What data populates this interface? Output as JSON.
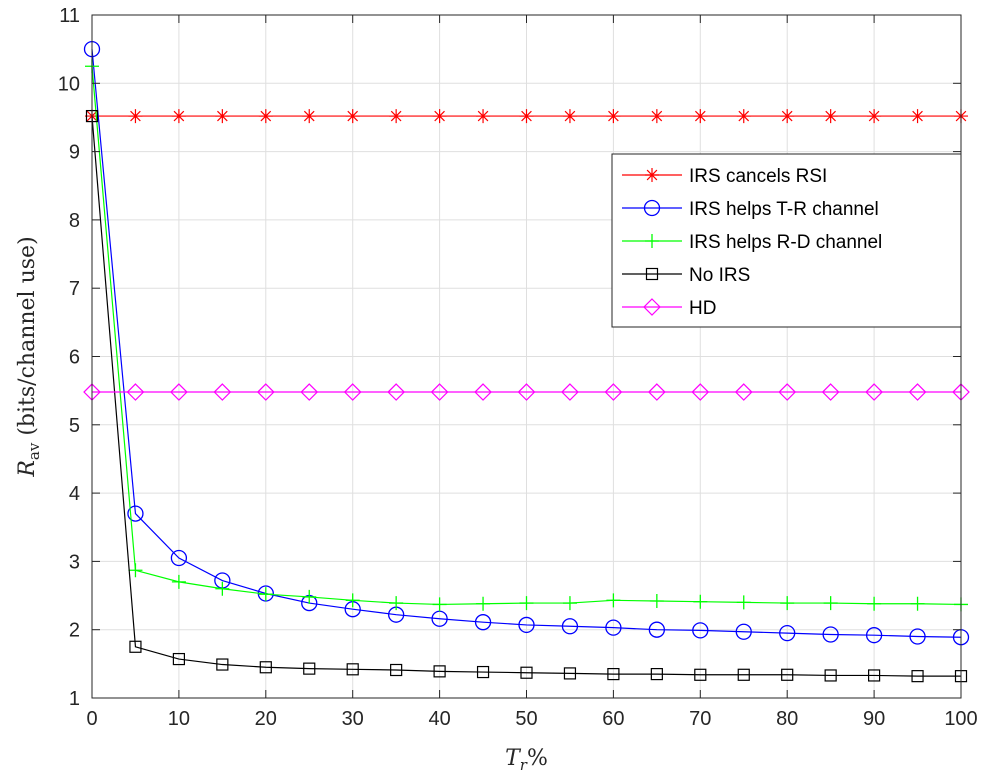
{
  "chart_data": {
    "type": "line",
    "xlabel": "T_r %",
    "ylabel": "R_av (bits/channel use)",
    "xlim": [
      0,
      100
    ],
    "ylim": [
      1,
      11
    ],
    "xticks": [
      "0",
      "10",
      "20",
      "30",
      "40",
      "50",
      "60",
      "70",
      "80",
      "90",
      "100"
    ],
    "yticks": [
      "1",
      "2",
      "3",
      "4",
      "5",
      "6",
      "7",
      "8",
      "9",
      "10",
      "11"
    ],
    "grid": true,
    "legend_position": "top-right",
    "x": [
      0,
      5,
      10,
      15,
      20,
      25,
      30,
      35,
      40,
      45,
      50,
      55,
      60,
      65,
      70,
      75,
      80,
      85,
      90,
      95,
      100
    ],
    "series": [
      {
        "name": "IRS cancels RSI",
        "color": "#ff0000",
        "marker": "asterisk",
        "values": [
          9.52,
          9.52,
          9.52,
          9.52,
          9.52,
          9.52,
          9.52,
          9.52,
          9.52,
          9.52,
          9.52,
          9.52,
          9.52,
          9.52,
          9.52,
          9.52,
          9.52,
          9.52,
          9.52,
          9.52,
          9.52
        ]
      },
      {
        "name": "IRS helps T-R channel",
        "color": "#0000ff",
        "marker": "circle",
        "values": [
          10.5,
          3.7,
          3.05,
          2.72,
          2.53,
          2.39,
          2.3,
          2.22,
          2.16,
          2.11,
          2.07,
          2.05,
          2.03,
          2.0,
          1.99,
          1.97,
          1.95,
          1.93,
          1.92,
          1.9,
          1.89
        ]
      },
      {
        "name": "IRS helps R-D channel",
        "color": "#00ff00",
        "marker": "plus",
        "values": [
          10.25,
          2.87,
          2.7,
          2.6,
          2.52,
          2.48,
          2.43,
          2.39,
          2.37,
          2.38,
          2.39,
          2.39,
          2.43,
          2.42,
          2.41,
          2.4,
          2.39,
          2.39,
          2.38,
          2.38,
          2.37
        ]
      },
      {
        "name": "No IRS",
        "color": "#000000",
        "marker": "square",
        "values": [
          9.52,
          1.75,
          1.57,
          1.49,
          1.45,
          1.43,
          1.42,
          1.41,
          1.39,
          1.38,
          1.37,
          1.36,
          1.35,
          1.35,
          1.34,
          1.34,
          1.34,
          1.33,
          1.33,
          1.32,
          1.32
        ]
      },
      {
        "name": "HD",
        "color": "#ff00ff",
        "marker": "diamond",
        "values": [
          5.48,
          5.48,
          5.48,
          5.48,
          5.48,
          5.48,
          5.48,
          5.48,
          5.48,
          5.48,
          5.48,
          5.48,
          5.48,
          5.48,
          5.48,
          5.48,
          5.48,
          5.48,
          5.48,
          5.48,
          5.48
        ]
      }
    ]
  }
}
